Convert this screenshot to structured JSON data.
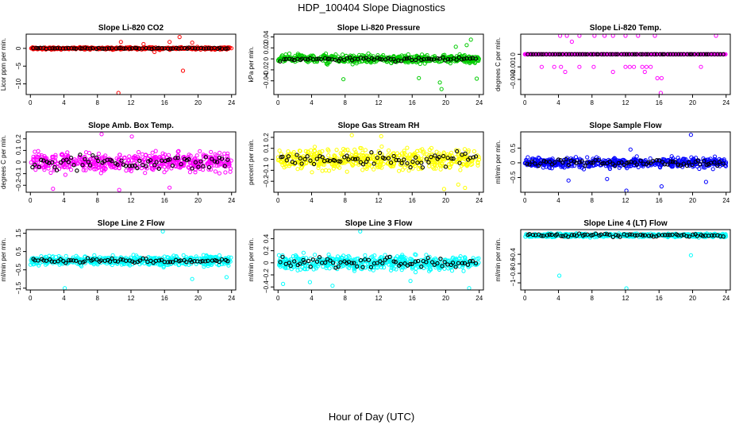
{
  "title": "HDP_100404  Slope Diagnostics",
  "xlabel": "Hour of Day (UTC)",
  "chart_data": [
    {
      "type": "scatter",
      "title": "Slope Li-820 CO2",
      "ylabel": "Licor ppm per min.",
      "color": "#ff0000",
      "xlim": [
        -0.5,
        24.5
      ],
      "ylim": [
        -13,
        4
      ],
      "xticks": [
        0,
        4,
        8,
        12,
        16,
        20,
        24
      ],
      "yticks": [
        -10,
        -5,
        0
      ],
      "spread": 0.3,
      "overlay_spread": 0.15,
      "outliers": [
        [
          10.5,
          -12.8
        ],
        [
          17.8,
          3.2
        ],
        [
          18.2,
          -6.3
        ],
        [
          10.8,
          1.8
        ],
        [
          13.5,
          1.2
        ],
        [
          16.6,
          1.8
        ],
        [
          19.3,
          1.6
        ],
        [
          14.8,
          -1.0
        ]
      ]
    },
    {
      "type": "scatter",
      "title": "Slope Li-820 Pressure",
      "ylabel": "kPa per min.",
      "color": "#00cc00",
      "xlim": [
        -0.5,
        24.5
      ],
      "ylim": [
        -0.065,
        0.045
      ],
      "xticks": [
        0,
        4,
        8,
        12,
        16,
        20,
        24
      ],
      "yticks": [
        -0.04,
        -0.02,
        0.0,
        0.02,
        0.04
      ],
      "spread": 0.007,
      "overlay_spread": 0.004,
      "outliers": [
        [
          19.5,
          -0.055
        ],
        [
          19.3,
          -0.043
        ],
        [
          7.8,
          -0.037
        ],
        [
          16.8,
          -0.035
        ],
        [
          23.7,
          -0.036
        ],
        [
          23.0,
          0.035
        ],
        [
          21.2,
          0.022
        ],
        [
          22.5,
          0.025
        ]
      ]
    },
    {
      "type": "scatter",
      "title": "Slope Li-820 Temp.",
      "ylabel": "degrees C per min.",
      "color": "#ff00ff",
      "xlim": [
        -0.5,
        24.5
      ],
      "ylim": [
        -0.0032,
        0.0016
      ],
      "xticks": [
        0,
        4,
        8,
        12,
        16,
        20,
        24
      ],
      "yticks": [
        -0.002,
        -0.001,
        0.0
      ],
      "spread": 0,
      "overlay_spread": 0,
      "outliers": [
        [
          4.2,
          0.0015
        ],
        [
          5.0,
          0.0015
        ],
        [
          6.5,
          0.0015
        ],
        [
          8.3,
          0.0015
        ],
        [
          9.5,
          0.0015
        ],
        [
          10.5,
          0.0015
        ],
        [
          12.0,
          0.0015
        ],
        [
          13.5,
          0.0015
        ],
        [
          15.5,
          0.0015
        ],
        [
          22.8,
          0.0015
        ],
        [
          5.6,
          0.001
        ],
        [
          2.0,
          -0.001
        ],
        [
          3.5,
          -0.001
        ],
        [
          4.3,
          -0.001
        ],
        [
          6.5,
          -0.001
        ],
        [
          8.2,
          -0.001
        ],
        [
          12.0,
          -0.001
        ],
        [
          12.5,
          -0.001
        ],
        [
          13.0,
          -0.001
        ],
        [
          14.0,
          -0.001
        ],
        [
          14.5,
          -0.001
        ],
        [
          15.0,
          -0.001
        ],
        [
          21.0,
          -0.001
        ],
        [
          4.8,
          -0.0014
        ],
        [
          10.5,
          -0.0014
        ],
        [
          14.3,
          -0.0014
        ],
        [
          15.8,
          -0.0019
        ],
        [
          16.3,
          -0.0019
        ],
        [
          16.2,
          -0.0031
        ]
      ]
    },
    {
      "type": "scatter",
      "title": "Slope Amb. Box Temp.",
      "ylabel": "degrees C per min.",
      "color": "#ff00ff",
      "xlim": [
        -0.5,
        24.5
      ],
      "ylim": [
        -0.26,
        0.26
      ],
      "xticks": [
        0,
        4,
        8,
        12,
        16,
        20,
        24
      ],
      "yticks": [
        -0.2,
        -0.1,
        0.0,
        0.1,
        0.2
      ],
      "spread": 0.075,
      "overlay_spread": 0.06,
      "outliers": [
        [
          10.6,
          -0.24
        ],
        [
          8.5,
          0.24
        ],
        [
          12.1,
          0.22
        ],
        [
          2.7,
          -0.23
        ],
        [
          16.6,
          -0.22
        ]
      ]
    },
    {
      "type": "scatter",
      "title": "Slope Gas Stream RH",
      "ylabel": "percent per min.",
      "color": "#ffff00",
      "xlim": [
        -0.5,
        24.5
      ],
      "ylim": [
        -0.3,
        0.25
      ],
      "xticks": [
        0,
        4,
        8,
        12,
        16,
        20,
        24
      ],
      "yticks": [
        -0.2,
        -0.1,
        0.0,
        0.1,
        0.2
      ],
      "spread": 0.085,
      "overlay_spread": 0.06,
      "outliers": [
        [
          19.8,
          -0.27
        ],
        [
          22.3,
          -0.26
        ],
        [
          8.8,
          0.22
        ],
        [
          12.3,
          0.21
        ],
        [
          21.5,
          -0.23
        ]
      ]
    },
    {
      "type": "scatter",
      "title": "Slope Sample Flow",
      "ylabel": "ml/min per min.",
      "color": "#0000ff",
      "xlim": [
        -0.5,
        24.5
      ],
      "ylim": [
        -1.0,
        1.05
      ],
      "xticks": [
        0,
        4,
        8,
        12,
        16,
        20,
        24
      ],
      "yticks": [
        -0.5,
        0.0,
        0.5
      ],
      "spread": 0.16,
      "overlay_spread": 0.1,
      "outliers": [
        [
          19.8,
          0.95
        ],
        [
          12.1,
          -0.95
        ],
        [
          16.3,
          -0.8
        ],
        [
          21.6,
          -0.65
        ],
        [
          5.2,
          -0.6
        ],
        [
          9.8,
          -0.55
        ],
        [
          12.6,
          0.45
        ]
      ]
    },
    {
      "type": "scatter",
      "title": "Slope Line 2 Flow",
      "ylabel": "ml/min per min.",
      "color": "#00ffff",
      "xlim": [
        -0.5,
        24.5
      ],
      "ylim": [
        -1.6,
        1.7
      ],
      "xticks": [
        0,
        4,
        8,
        12,
        16,
        20,
        24
      ],
      "yticks": [
        -1.5,
        -0.5,
        0.5,
        1.5
      ],
      "spread": 0.25,
      "overlay_spread": 0.12,
      "outliers": [
        [
          15.8,
          1.6
        ],
        [
          4.1,
          -1.5
        ],
        [
          19.3,
          -1.0
        ],
        [
          23.4,
          -0.9
        ]
      ]
    },
    {
      "type": "scatter",
      "title": "Slope Line 3 Flow",
      "ylabel": "ml/min per min.",
      "color": "#00ffff",
      "xlim": [
        -0.5,
        24.5
      ],
      "ylim": [
        -0.45,
        0.55
      ],
      "xticks": [
        0,
        4,
        8,
        12,
        16,
        20,
        24
      ],
      "yticks": [
        -0.4,
        -0.2,
        0.0,
        0.2,
        0.4
      ],
      "spread": 0.11,
      "overlay_spread": 0.1,
      "outliers": [
        [
          9.8,
          0.52
        ],
        [
          22.8,
          -0.42
        ],
        [
          0.6,
          -0.35
        ],
        [
          3.8,
          -0.32
        ],
        [
          15.8,
          -0.3
        ],
        [
          6.5,
          -0.38
        ]
      ]
    },
    {
      "type": "scatter",
      "title": "Slope Line 4 (LT) Flow",
      "ylabel": "ml/min per min.",
      "color": "#00ffff",
      "xlim": [
        -0.5,
        24.5
      ],
      "ylim": [
        -1.15,
        0.12
      ],
      "xticks": [
        0,
        4,
        8,
        12,
        16,
        20,
        24
      ],
      "yticks": [
        -1.0,
        -0.8,
        -0.6,
        -0.4
      ],
      "spread": 0.035,
      "overlay_spread": 0.03,
      "outliers": [
        [
          4.1,
          -0.85
        ],
        [
          12.1,
          -1.12
        ],
        [
          19.8,
          -0.42
        ]
      ]
    }
  ]
}
